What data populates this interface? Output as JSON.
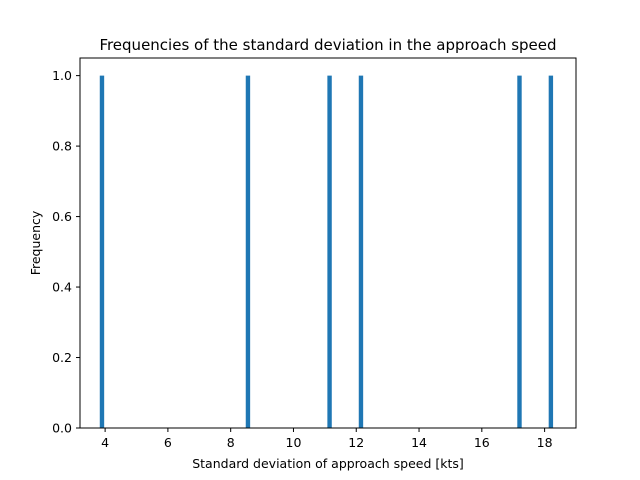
{
  "chart_data": {
    "type": "bar",
    "title": "Frequencies of the standard deviation in the approach speed",
    "xlabel": "Standard deviation of approach speed [kts]",
    "ylabel": "Frequency",
    "xlim": [
      3.2,
      19.0
    ],
    "ylim": [
      0,
      1.05
    ],
    "xticks": [
      4,
      6,
      8,
      10,
      12,
      14,
      16,
      18
    ],
    "yticks": [
      0.0,
      0.2,
      0.4,
      0.6,
      0.8,
      1.0
    ],
    "xtick_labels": [
      "4",
      "6",
      "8",
      "10",
      "12",
      "14",
      "16",
      "18"
    ],
    "ytick_labels": [
      "0.0",
      "0.2",
      "0.4",
      "0.6",
      "0.8",
      "1.0"
    ],
    "bars": [
      {
        "x": 3.9,
        "value": 1
      },
      {
        "x": 8.55,
        "value": 1
      },
      {
        "x": 11.15,
        "value": 1
      },
      {
        "x": 12.15,
        "value": 1
      },
      {
        "x": 17.2,
        "value": 1
      },
      {
        "x": 18.2,
        "value": 1
      }
    ],
    "bar_width": 0.14,
    "bar_color": "#1f77b4",
    "grid": false
  }
}
